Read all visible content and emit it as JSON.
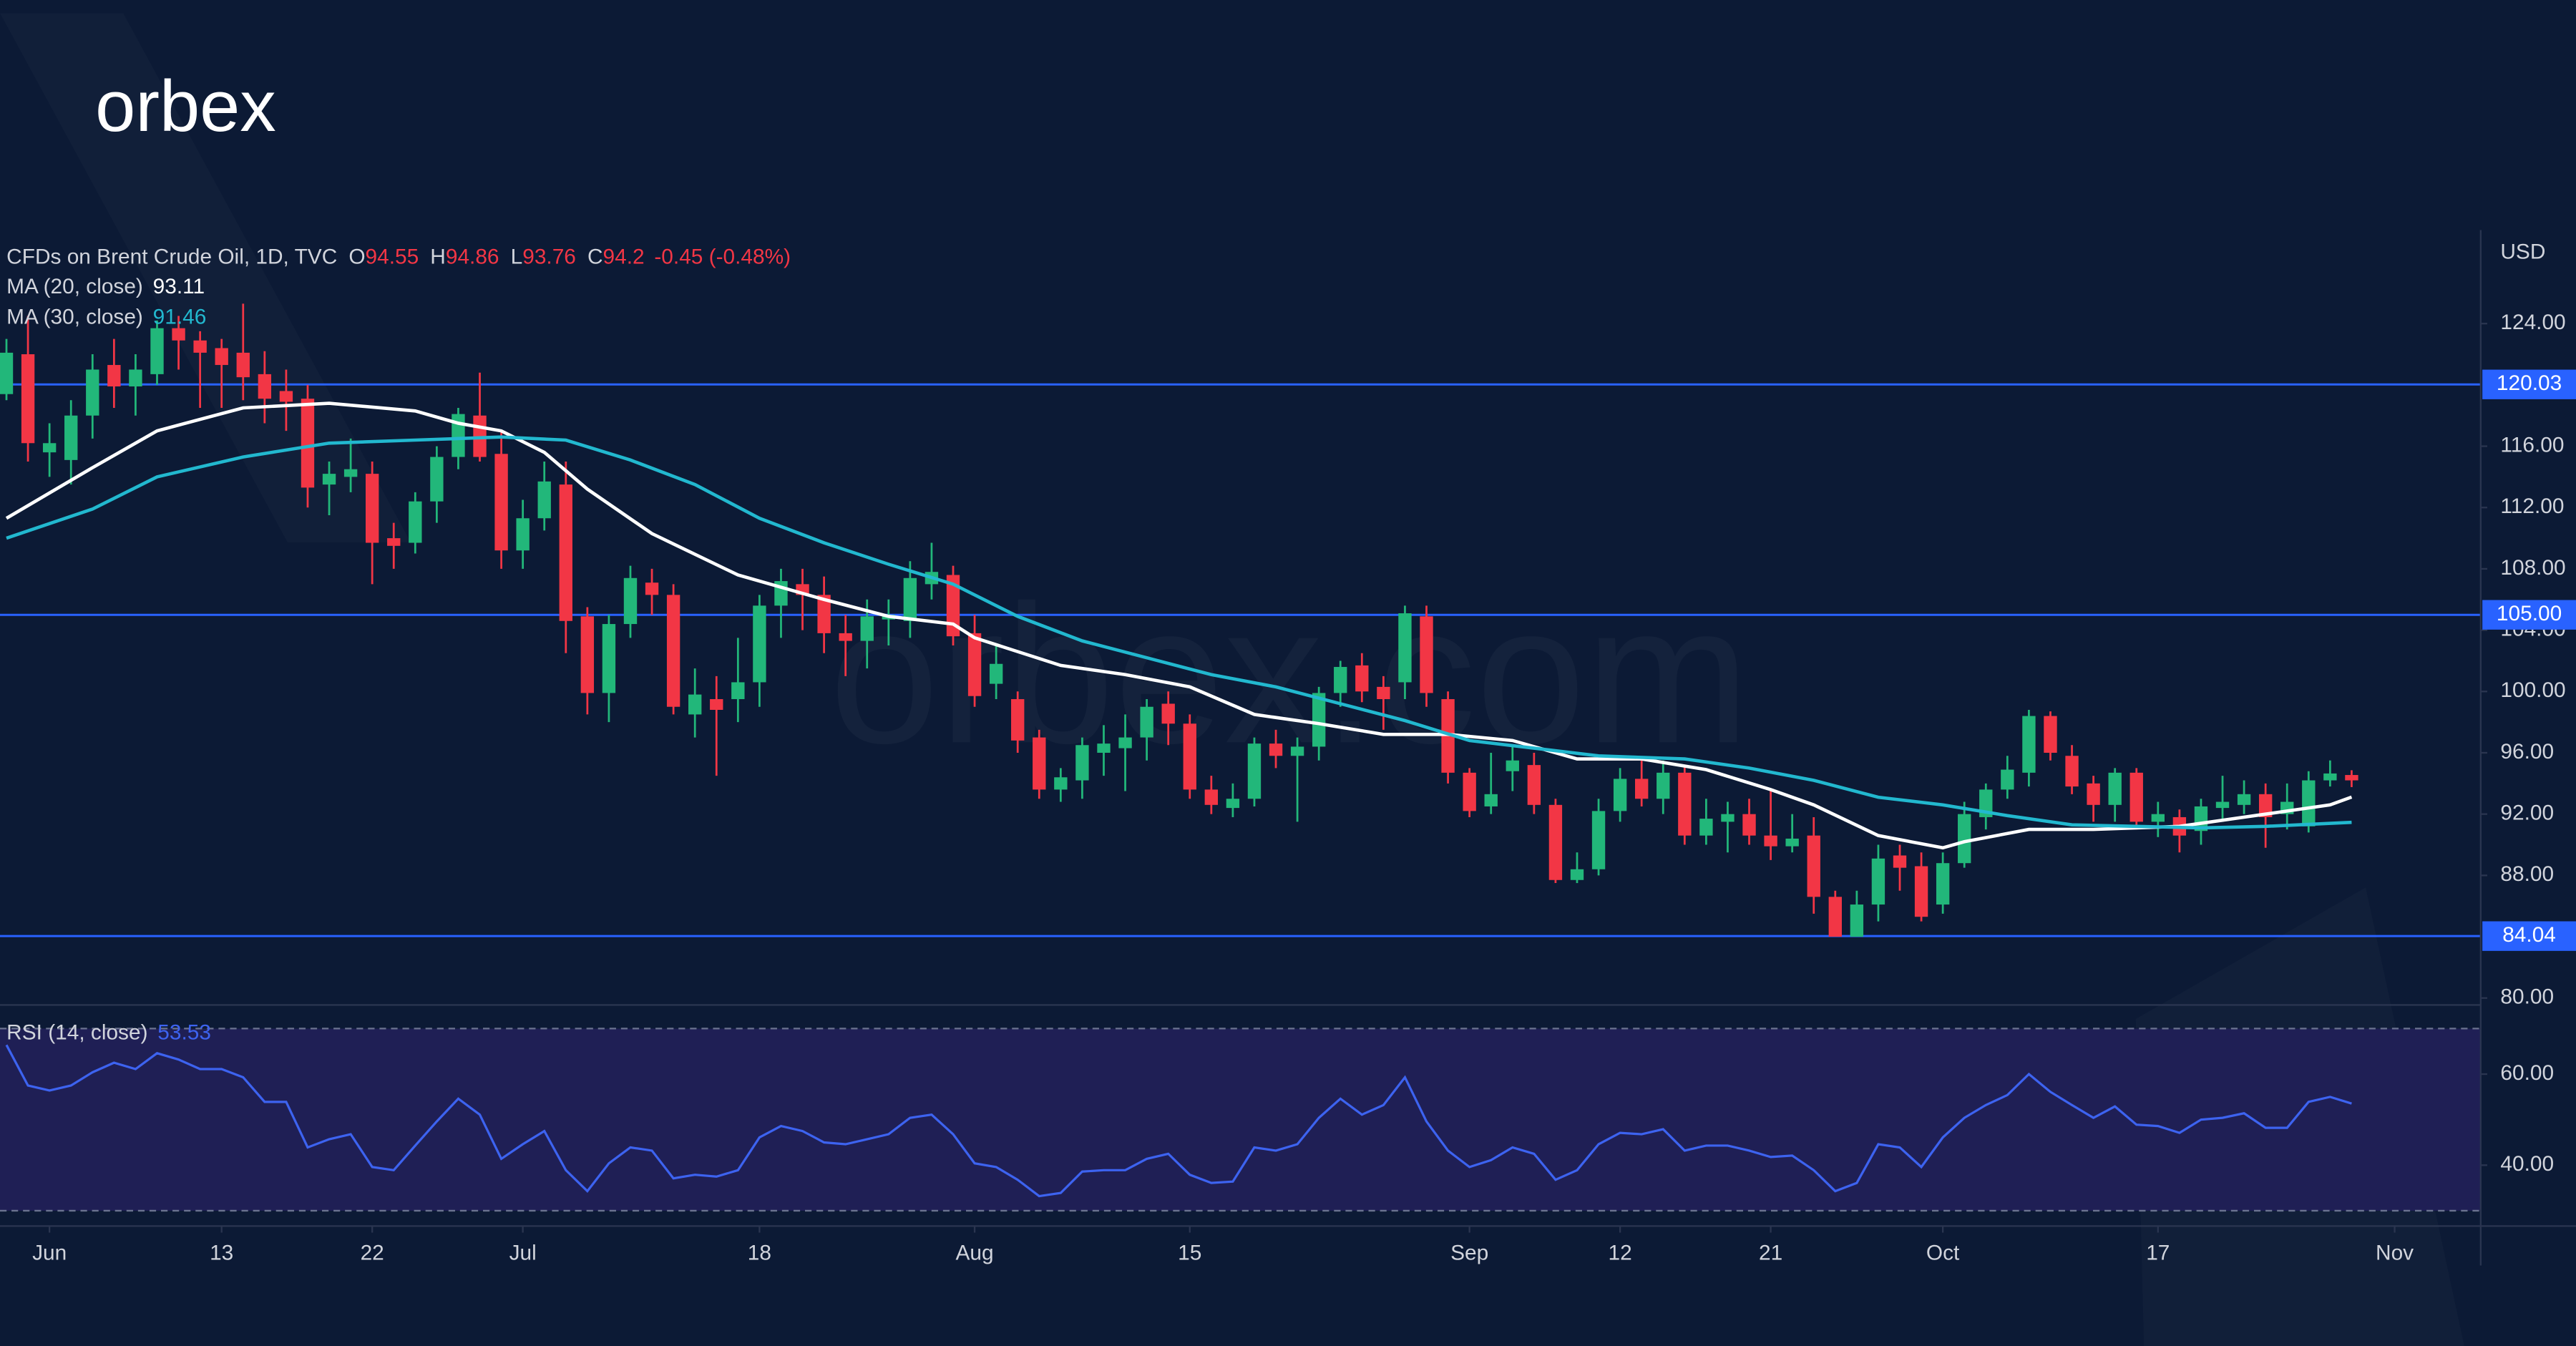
{
  "logo": "orbex",
  "watermark": "orbex.com",
  "chart_data": {
    "type": "candlestick",
    "title": "CFDs on Brent Crude Oil, 1D, TVC",
    "ohlc_labels": [
      "O",
      "H",
      "L",
      "C"
    ],
    "change": "-0.45 (-0.48%)",
    "y_unit": "USD",
    "up_color": "#22b77a",
    "down_color": "#f23645",
    "xlim": [
      -0.3,
      115
    ],
    "xticks": [
      {
        "value": 2,
        "label": "Jun"
      },
      {
        "value": 10,
        "label": "13"
      },
      {
        "value": 17,
        "label": "22"
      },
      {
        "value": 24,
        "label": "Jul"
      },
      {
        "value": 35,
        "label": "18"
      },
      {
        "value": 45,
        "label": "Aug"
      },
      {
        "value": 55,
        "label": "15"
      },
      {
        "value": 68,
        "label": "Sep"
      },
      {
        "value": 75,
        "label": "12"
      },
      {
        "value": 82,
        "label": "21"
      },
      {
        "value": 90,
        "label": "Oct"
      },
      {
        "value": 100,
        "label": "17"
      },
      {
        "value": 111,
        "label": "Nov"
      }
    ],
    "ylim": [
      79.6,
      130.1
    ],
    "yticks": [
      {
        "value": 80,
        "label": "80.00"
      },
      {
        "value": 88,
        "label": "88.00"
      },
      {
        "value": 92,
        "label": "92.00"
      },
      {
        "value": 96,
        "label": "96.00"
      },
      {
        "value": 100,
        "label": "100.00"
      },
      {
        "value": 104,
        "label": "104.00"
      },
      {
        "value": 108,
        "label": "108.00"
      },
      {
        "value": 112,
        "label": "112.00"
      },
      {
        "value": 116,
        "label": "116.00"
      },
      {
        "value": 124,
        "label": "124.00"
      }
    ],
    "hline_color": "#2962ff",
    "hlines": [
      120.03,
      {
        "value": 105,
        "label": "105.00"
      },
      84.04
    ],
    "open": [
      119.4,
      122,
      115.6,
      115.1,
      118,
      121.3,
      119.9,
      120.7,
      123.7,
      122.9,
      122.4,
      122.1,
      120.7,
      119.6,
      119.1,
      113.5,
      114,
      114.2,
      110,
      109.7,
      112.4,
      115.3,
      118,
      115.5,
      109.2,
      111.3,
      113.5,
      104.9,
      99.9,
      104.4,
      107.1,
      106.3,
      98.5,
      99.5,
      99.5,
      100.6,
      105.6,
      107,
      106.3,
      103.8,
      103.3,
      104.7,
      104.6,
      107,
      107.6,
      103.8,
      100.5,
      99.5,
      97,
      93.6,
      94.2,
      96,
      96.3,
      97,
      99.2,
      97.9,
      93.6,
      92.4,
      93,
      96.6,
      95.8,
      96.4,
      99.9,
      101.7,
      100.3,
      100.6,
      104.9,
      99.5,
      94.7,
      92.5,
      94.8,
      95.2,
      92.6,
      87.7,
      88.4,
      92.2,
      94.3,
      93,
      94.7,
      90.6,
      91.5,
      92,
      90.6,
      89.9,
      90.6,
      86.6,
      84,
      86.1,
      89.3,
      88.6,
      86.1,
      88.8,
      91.8,
      93.6,
      94.7,
      98.4,
      95.8,
      94,
      92.6,
      94.7,
      91.5,
      91.8,
      90.9,
      92.4,
      92.6,
      93.3,
      92,
      91.2,
      94.2,
      94.55
    ],
    "high": [
      123,
      124.5,
      117.5,
      119,
      122,
      123,
      122,
      124.2,
      124.5,
      123.5,
      123,
      125.3,
      122.2,
      121,
      120,
      115,
      116.5,
      115,
      111,
      113,
      116,
      118.5,
      120.8,
      117,
      112.5,
      115,
      115,
      105.5,
      105,
      108.2,
      108,
      107,
      101.5,
      101,
      103.5,
      106.3,
      108,
      108,
      107.5,
      105,
      106,
      106,
      108.5,
      109.7,
      108.2,
      105,
      103,
      100,
      97.5,
      95,
      97,
      97.8,
      98.5,
      99.5,
      100,
      98.5,
      94.5,
      94,
      97,
      97.5,
      97,
      100.3,
      102,
      102.5,
      101,
      105.6,
      105.6,
      100,
      95,
      96,
      96.5,
      96,
      93,
      89.5,
      93,
      95,
      95.5,
      95.5,
      95.2,
      93,
      92.8,
      93,
      93.5,
      92,
      91.8,
      87,
      87,
      90,
      90,
      89.5,
      89.5,
      92.8,
      94,
      95.8,
      98.8,
      98.7,
      96.5,
      94.5,
      95,
      95,
      92.8,
      92.3,
      93,
      94.5,
      94.2,
      94,
      94,
      94.8,
      95.5,
      94.86
    ],
    "low": [
      119,
      115,
      114,
      113.5,
      116.5,
      118.5,
      118,
      120,
      121,
      118.5,
      118.5,
      119,
      117.5,
      117,
      112,
      111.5,
      113,
      107,
      108,
      109,
      111,
      114.5,
      115,
      108,
      108,
      110.5,
      102.5,
      98.5,
      98,
      103.5,
      105,
      98.5,
      97,
      94.5,
      98,
      99,
      103.5,
      104,
      102.5,
      101,
      101.5,
      103,
      103.5,
      106,
      103,
      99,
      99.5,
      96,
      93,
      92.8,
      93,
      94.5,
      93.5,
      95.5,
      96.5,
      93,
      92,
      91.8,
      92.5,
      95,
      91.5,
      95.5,
      99,
      99.3,
      97.5,
      99.5,
      99,
      94,
      91.8,
      92,
      93.5,
      92,
      87.5,
      87.5,
      88,
      91.5,
      92.5,
      92,
      90,
      90,
      89.5,
      90,
      89,
      89.5,
      85.5,
      84,
      84,
      85,
      87,
      85,
      85.5,
      88.5,
      91,
      93,
      93.8,
      95.5,
      93.3,
      91.5,
      91.5,
      91,
      90.5,
      89.5,
      90,
      91.5,
      92,
      89.8,
      91,
      90.8,
      93.8,
      93.76
    ],
    "close": [
      122.1,
      116.2,
      116.2,
      118,
      121,
      119.9,
      121,
      123.7,
      122.9,
      122.1,
      121.3,
      120.5,
      119.1,
      118.9,
      113.3,
      114.2,
      114.5,
      109.7,
      109.5,
      112.4,
      115.3,
      118.1,
      115.3,
      109.2,
      111.3,
      113.7,
      104.6,
      99.9,
      104.4,
      107.4,
      106.3,
      99,
      99.8,
      98.8,
      100.6,
      105.6,
      107.2,
      106.3,
      103.8,
      103.3,
      104.9,
      105,
      107.4,
      107.8,
      103.6,
      99.7,
      101.8,
      96.8,
      93.6,
      94.4,
      96.5,
      96.6,
      97,
      99,
      97.9,
      93.6,
      92.6,
      93,
      96.6,
      95.8,
      96.4,
      99.9,
      101.6,
      100,
      99.5,
      105.1,
      99.9,
      94.7,
      92.2,
      93.3,
      95.5,
      92.6,
      87.7,
      88.4,
      92.2,
      94.3,
      93,
      94.7,
      90.6,
      91.7,
      92,
      90.6,
      89.9,
      90.4,
      86.6,
      84,
      86.1,
      89.1,
      88.5,
      85.3,
      88.8,
      92,
      93.6,
      94.9,
      98.4,
      96,
      93.8,
      92.6,
      94.7,
      91.5,
      92,
      90.6,
      92.5,
      92.8,
      93.3,
      91.8,
      92.8,
      94.2,
      94.65,
      94.2
    ],
    "overlays": [
      {
        "name": "MA (20, close)",
        "color": "#ffffff",
        "x": [
          0,
          4,
          7,
          11,
          15,
          19,
          21,
          23,
          25,
          27,
          30,
          34,
          38,
          41,
          44,
          45,
          49,
          52,
          55,
          58,
          61,
          64,
          67,
          70,
          73,
          76,
          79,
          82,
          84,
          87,
          90,
          91,
          94,
          97,
          101,
          105,
          108,
          109
        ],
        "values": [
          111.3,
          114.6,
          117.0,
          118.5,
          118.8,
          118.3,
          117.5,
          117.0,
          115.6,
          113.2,
          110.3,
          107.6,
          106.0,
          104.9,
          104.4,
          103.5,
          101.7,
          101.1,
          100.3,
          98.5,
          97.9,
          97.2,
          97.2,
          96.8,
          95.6,
          95.6,
          94.9,
          93.6,
          92.6,
          90.6,
          89.8,
          90.2,
          91.0,
          91.0,
          91.2,
          92.0,
          92.6,
          93.11
        ]
      },
      {
        "name": "MA (30, close)",
        "color": "#22b8cf",
        "x": [
          0,
          4,
          7,
          11,
          15,
          19,
          23,
          26,
          29,
          32,
          35,
          38,
          41,
          44,
          47,
          50,
          53,
          56,
          59,
          62,
          65,
          68,
          71,
          74,
          78,
          81,
          84,
          87,
          90,
          93,
          96,
          99,
          102,
          105,
          109
        ],
        "values": [
          110.0,
          111.9,
          114.0,
          115.3,
          116.2,
          116.4,
          116.6,
          116.4,
          115.1,
          113.5,
          111.3,
          109.7,
          108.3,
          107.0,
          104.9,
          103.3,
          102.2,
          101.1,
          100.3,
          99.2,
          98.1,
          96.8,
          96.3,
          95.8,
          95.6,
          95.0,
          94.2,
          93.1,
          92.6,
          91.9,
          91.3,
          91.2,
          91.1,
          91.2,
          91.46
        ]
      }
    ],
    "rsi": {
      "name": "RSI (14, close)",
      "color": "#3d63f0",
      "band_color": "#1f1f55",
      "ylim": [
        27,
        75
      ],
      "band": [
        30,
        70
      ],
      "yticks": [
        {
          "value": 40,
          "label": "40.00"
        },
        {
          "value": 60,
          "label": "60.00"
        }
      ],
      "values": [
        66.4,
        57.5,
        56.4,
        57.5,
        60.4,
        62.5,
        61.1,
        64.6,
        63.2,
        61.1,
        61.1,
        59.3,
        53.9,
        53.9,
        43.9,
        45.7,
        46.8,
        39.6,
        38.9,
        44.3,
        49.6,
        54.6,
        51.1,
        41.4,
        44.6,
        47.5,
        38.9,
        34.3,
        40.4,
        43.9,
        43.2,
        37.1,
        37.9,
        37.5,
        38.9,
        46.1,
        48.6,
        47.5,
        45.0,
        44.6,
        45.7,
        46.8,
        50.4,
        51.1,
        46.8,
        40.4,
        39.6,
        36.8,
        33.2,
        33.9,
        38.6,
        38.9,
        38.9,
        41.4,
        42.5,
        37.9,
        36.1,
        36.4,
        43.9,
        43.2,
        44.6,
        50.4,
        54.6,
        51.1,
        53.2,
        59.3,
        49.6,
        43.2,
        39.6,
        41.1,
        43.9,
        42.5,
        36.8,
        38.9,
        44.6,
        47.1,
        46.8,
        47.9,
        43.2,
        44.3,
        44.3,
        43.2,
        41.8,
        42.1,
        38.9,
        34.3,
        36.1,
        44.6,
        43.9,
        39.6,
        46.1,
        50.4,
        53.2,
        55.4,
        60.0,
        56.1,
        53.2,
        50.4,
        52.9,
        48.9,
        48.6,
        47.1,
        50.0,
        50.4,
        51.4,
        48.2,
        48.2,
        53.9,
        55.0,
        53.53
      ]
    }
  }
}
